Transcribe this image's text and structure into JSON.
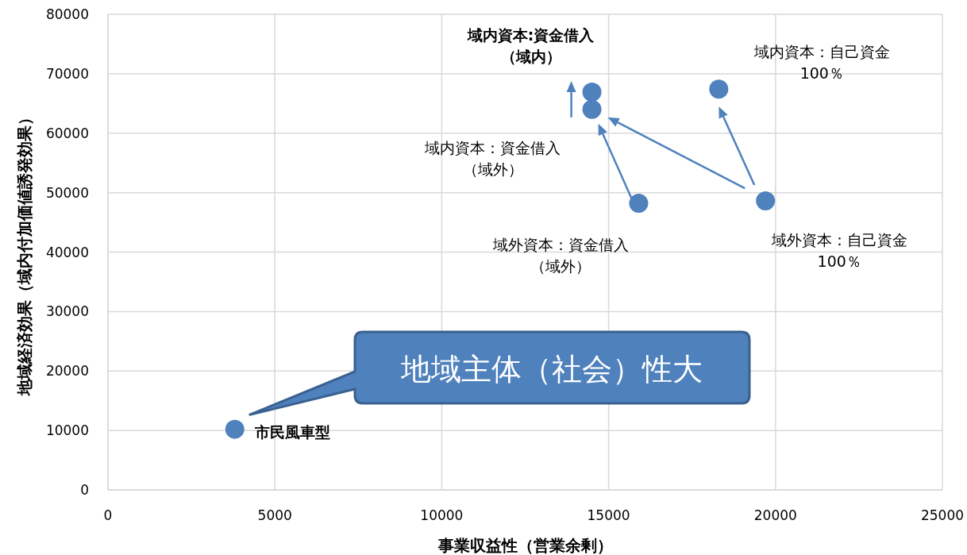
{
  "chart_data": {
    "type": "scatter",
    "xlabel": "事業収益性（営業余剰）",
    "ylabel": "地域経済効果（域内付加価値誘発効果）",
    "x": [
      3800,
      14500,
      14500,
      15900,
      18300,
      19700
    ],
    "series": [
      {
        "color": "#4f81bd",
        "values": [
          10200,
          66900,
          64000,
          48200,
          67400,
          48600
        ]
      }
    ],
    "marker": "circle",
    "grid": true,
    "xlim": [
      0,
      25000
    ],
    "xticks": [
      0,
      5000,
      10000,
      15000,
      20000,
      25000
    ],
    "ylim": [
      0,
      80000
    ],
    "yticks": [
      0,
      10000,
      20000,
      30000,
      40000,
      50000,
      60000,
      70000,
      80000
    ],
    "annotations": [
      {
        "text": "市民風車型",
        "x": 3800,
        "y": 10200
      },
      {
        "text": "域内資本:資金借入（域内）",
        "x": 14500,
        "y": 66900
      },
      {
        "text": "域内資本：資金借入（域外）",
        "x": 14500,
        "y": 64000
      },
      {
        "text": "域外資本：資金借入（域外）",
        "x": 15900,
        "y": 48200
      },
      {
        "text": "域内資本：自己資金100％",
        "x": 18300,
        "y": 67400
      },
      {
        "text": "域外資本：自己資金100％",
        "x": 19700,
        "y": 48600
      },
      "地域主体（社会）性大"
    ]
  }
}
